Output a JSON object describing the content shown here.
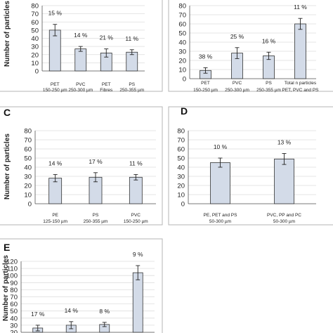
{
  "chart_data": [
    {
      "panel": "",
      "type": "bar",
      "ylabel": "Number of particles",
      "ylim": [
        0,
        80
      ],
      "yticks": [
        0,
        10,
        20,
        30,
        40,
        50,
        60,
        70,
        80
      ],
      "grid": true,
      "categories": [
        [
          "PET",
          "150-250 µm"
        ],
        [
          "PVC",
          "250-300 µm"
        ],
        [
          "PET",
          "Fibres"
        ],
        [
          "PS",
          "250-355 µm"
        ]
      ],
      "values": [
        50,
        27,
        22,
        23
      ],
      "errors": [
        7,
        3,
        5,
        3
      ],
      "percent_labels": [
        "15 %",
        "14 %",
        "21 %",
        "11 %"
      ]
    },
    {
      "panel": "",
      "type": "bar",
      "ylabel": "",
      "ylim": [
        0,
        80
      ],
      "yticks": [
        0,
        10,
        20,
        30,
        40,
        50,
        60,
        70,
        80
      ],
      "grid": true,
      "categories": [
        [
          "PET",
          "150-250 µm"
        ],
        [
          "PVC",
          "250-300 µm"
        ],
        [
          "PS",
          "250-355 µm"
        ],
        [
          "Total n particles",
          "PET, PVC and PS"
        ]
      ],
      "values": [
        9,
        28,
        25,
        60
      ],
      "errors": [
        3,
        6,
        4,
        6
      ],
      "percent_labels": [
        "38 %",
        "25 %",
        "16 %",
        "11 %"
      ]
    },
    {
      "panel": "C",
      "type": "bar",
      "ylabel": "Number of particles",
      "ylim": [
        0,
        80
      ],
      "yticks": [
        0,
        10,
        20,
        30,
        40,
        50,
        60,
        70,
        80
      ],
      "grid": true,
      "categories": [
        [
          "PE",
          "125-150 µm"
        ],
        [
          "PS",
          "250-355 µm"
        ],
        [
          "PVC",
          "150-250 µm"
        ]
      ],
      "values": [
        28,
        29,
        29
      ],
      "errors": [
        4,
        5,
        3
      ],
      "percent_labels": [
        "14 %",
        "17 %",
        "11 %"
      ]
    },
    {
      "panel": "D",
      "type": "bar",
      "ylabel": "",
      "ylim": [
        0,
        80
      ],
      "yticks": [
        0,
        10,
        20,
        30,
        40,
        50,
        60,
        70,
        80
      ],
      "grid": true,
      "categories": [
        [
          "PE, PET and PS",
          "50-300 µm"
        ],
        [
          "PVC, PP and PC",
          "50-300 µm"
        ]
      ],
      "values": [
        45,
        49
      ],
      "errors": [
        5,
        6
      ],
      "percent_labels": [
        "10 %",
        "13 %"
      ]
    },
    {
      "panel": "E",
      "type": "bar",
      "ylabel": "Number of particles",
      "ylim": [
        20,
        120
      ],
      "yticks": [
        20,
        30,
        40,
        50,
        60,
        70,
        80,
        90,
        100,
        110,
        120
      ],
      "grid": true,
      "categories": [
        [
          "",
          ""
        ],
        [
          "",
          ""
        ],
        [
          "",
          ""
        ],
        [
          "",
          ""
        ]
      ],
      "values": [
        26,
        30,
        31,
        104
      ],
      "errors": [
        4,
        5,
        3,
        10
      ],
      "percent_labels": [
        "17 %",
        "14 %",
        "8 %",
        "9 %"
      ]
    }
  ]
}
